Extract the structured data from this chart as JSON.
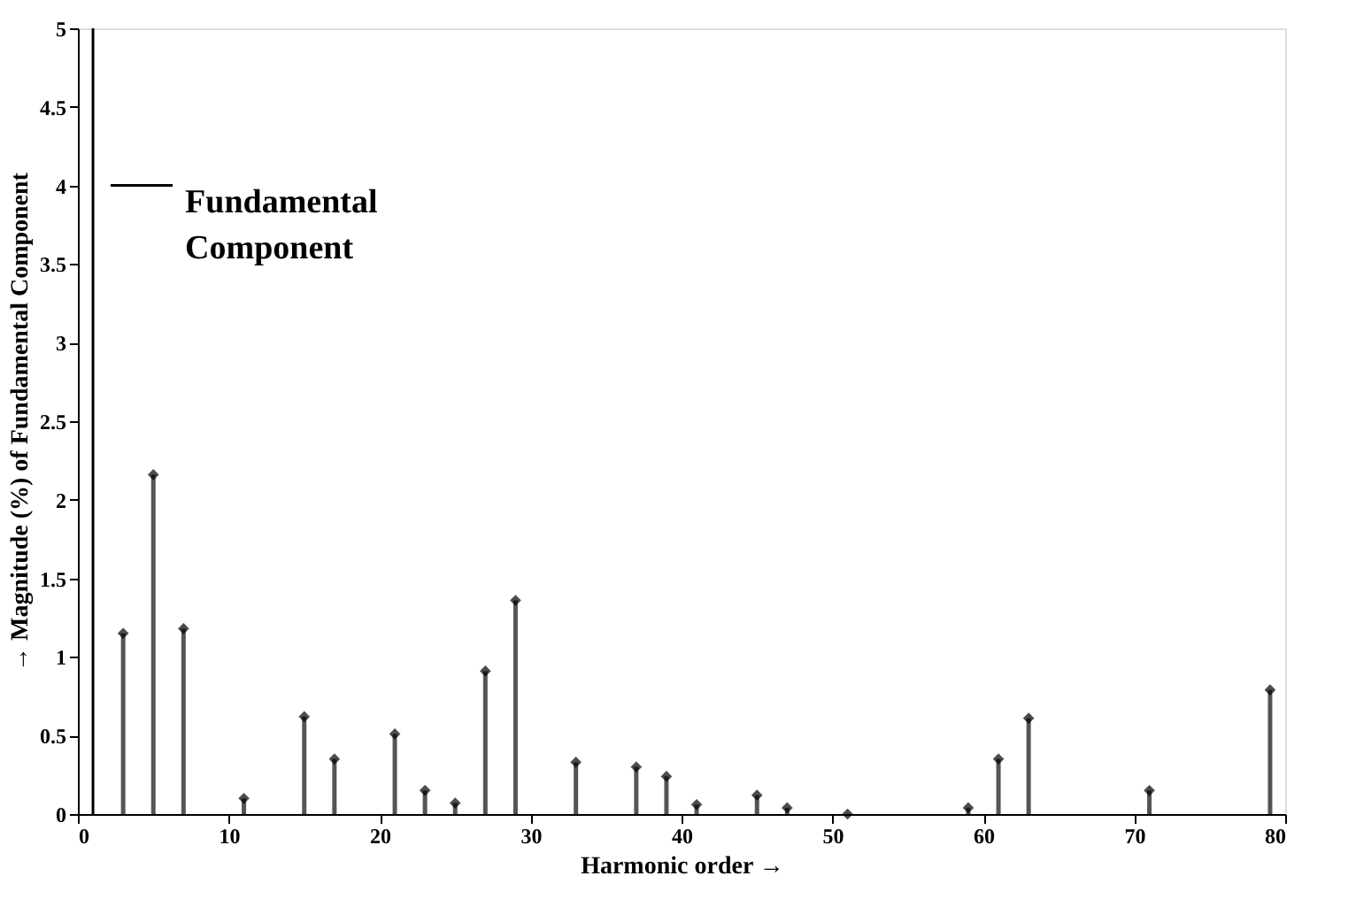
{
  "chart_data": {
    "type": "lollipop",
    "xlabel": "Harmonic order →",
    "ylabel": "→   Magnitude (%) of Fundamental Component",
    "x": [
      3,
      5,
      7,
      11,
      15,
      17,
      21,
      23,
      25,
      27,
      29,
      33,
      37,
      39,
      41,
      45,
      47,
      51,
      59,
      61,
      63,
      71,
      79
    ],
    "series": [
      {
        "color": "#000000",
        "values": [
          1.15,
          2.16,
          1.18,
          0.1,
          0.62,
          0.35,
          0.51,
          0.15,
          0.07,
          0.91,
          1.36,
          0.33,
          0.3,
          0.24,
          0.06,
          0.12,
          0.04,
          0.0,
          0.04,
          0.35,
          0.61,
          0.15,
          0.79
        ]
      }
    ],
    "xlim": [
      0,
      80
    ],
    "xticks": [
      0,
      10,
      20,
      30,
      40,
      50,
      60,
      70,
      80
    ],
    "ylim": [
      0,
      5
    ],
    "yticks": [
      0,
      0.5,
      1,
      1.5,
      2,
      2.5,
      3,
      3.5,
      4,
      4.5,
      5
    ],
    "ref_lines": [
      {
        "axis": "x",
        "value": 1,
        "color": "#000000"
      }
    ],
    "annotations": [
      {
        "text": "Fundamental Component",
        "x": 1,
        "y": 4
      }
    ],
    "marker": "diamond",
    "grid": false
  }
}
